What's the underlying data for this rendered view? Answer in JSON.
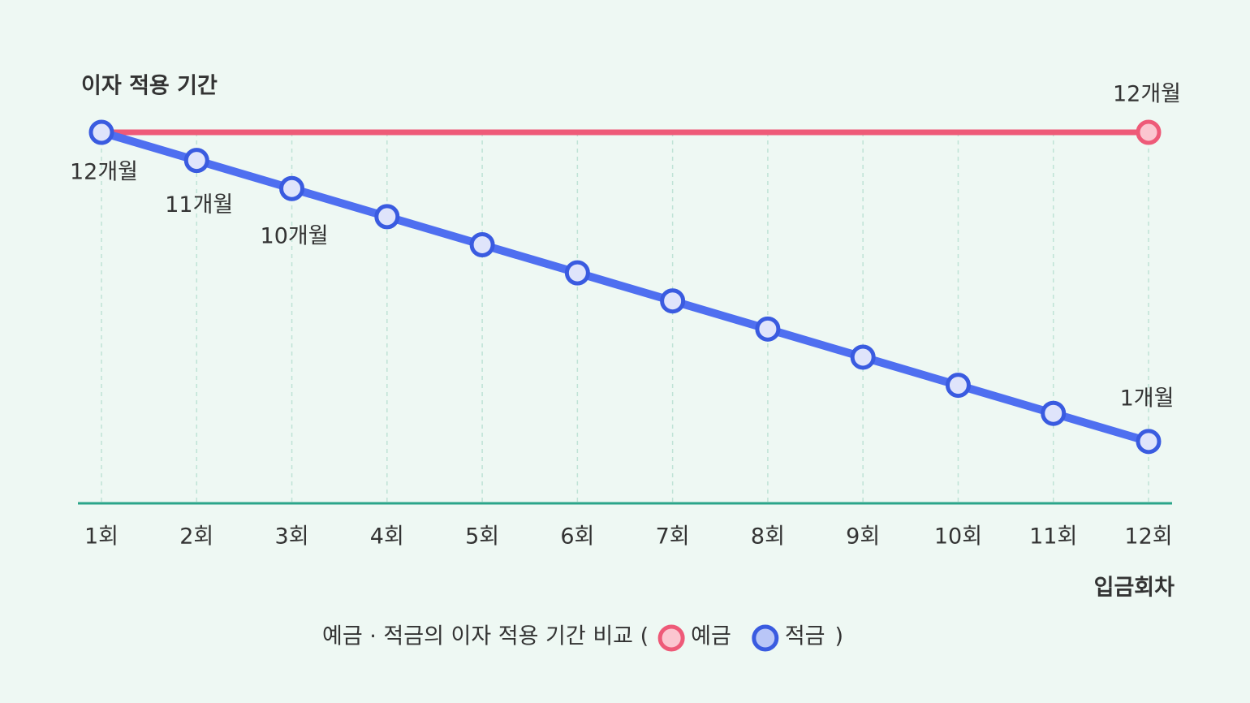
{
  "chart_data": {
    "type": "line",
    "y_label": "이자 적용 기간",
    "x_label": "입금회차",
    "caption": "예금 · 적금의 이자 적용 기간 비교 (",
    "caption_end": ")",
    "categories": [
      "1회",
      "2회",
      "3회",
      "4회",
      "5회",
      "6회",
      "7회",
      "8회",
      "9회",
      "10회",
      "11회",
      "12회"
    ],
    "ylim": [
      -1.2,
      12
    ],
    "grid": true,
    "series": [
      {
        "name": "예금",
        "color": "#ee5a78",
        "marker_fill": "#fbc6d0",
        "markers": "last",
        "values": [
          12,
          12,
          12,
          12,
          12,
          12,
          12,
          12,
          12,
          12,
          12,
          12
        ],
        "value_labels": [
          null,
          null,
          null,
          null,
          null,
          null,
          null,
          null,
          null,
          null,
          null,
          "12개월"
        ]
      },
      {
        "name": "적금",
        "color": "#4f6ff0",
        "marker_fill": "#dfe4fb",
        "legend_fill": "#b9c6f7",
        "markers": "all",
        "values": [
          12,
          11,
          10,
          9,
          8,
          7,
          6,
          5,
          4,
          3,
          2,
          1
        ],
        "value_labels": [
          "12개월",
          "11개월",
          "10개월",
          null,
          null,
          null,
          null,
          null,
          null,
          null,
          null,
          "1개월"
        ]
      }
    ]
  }
}
